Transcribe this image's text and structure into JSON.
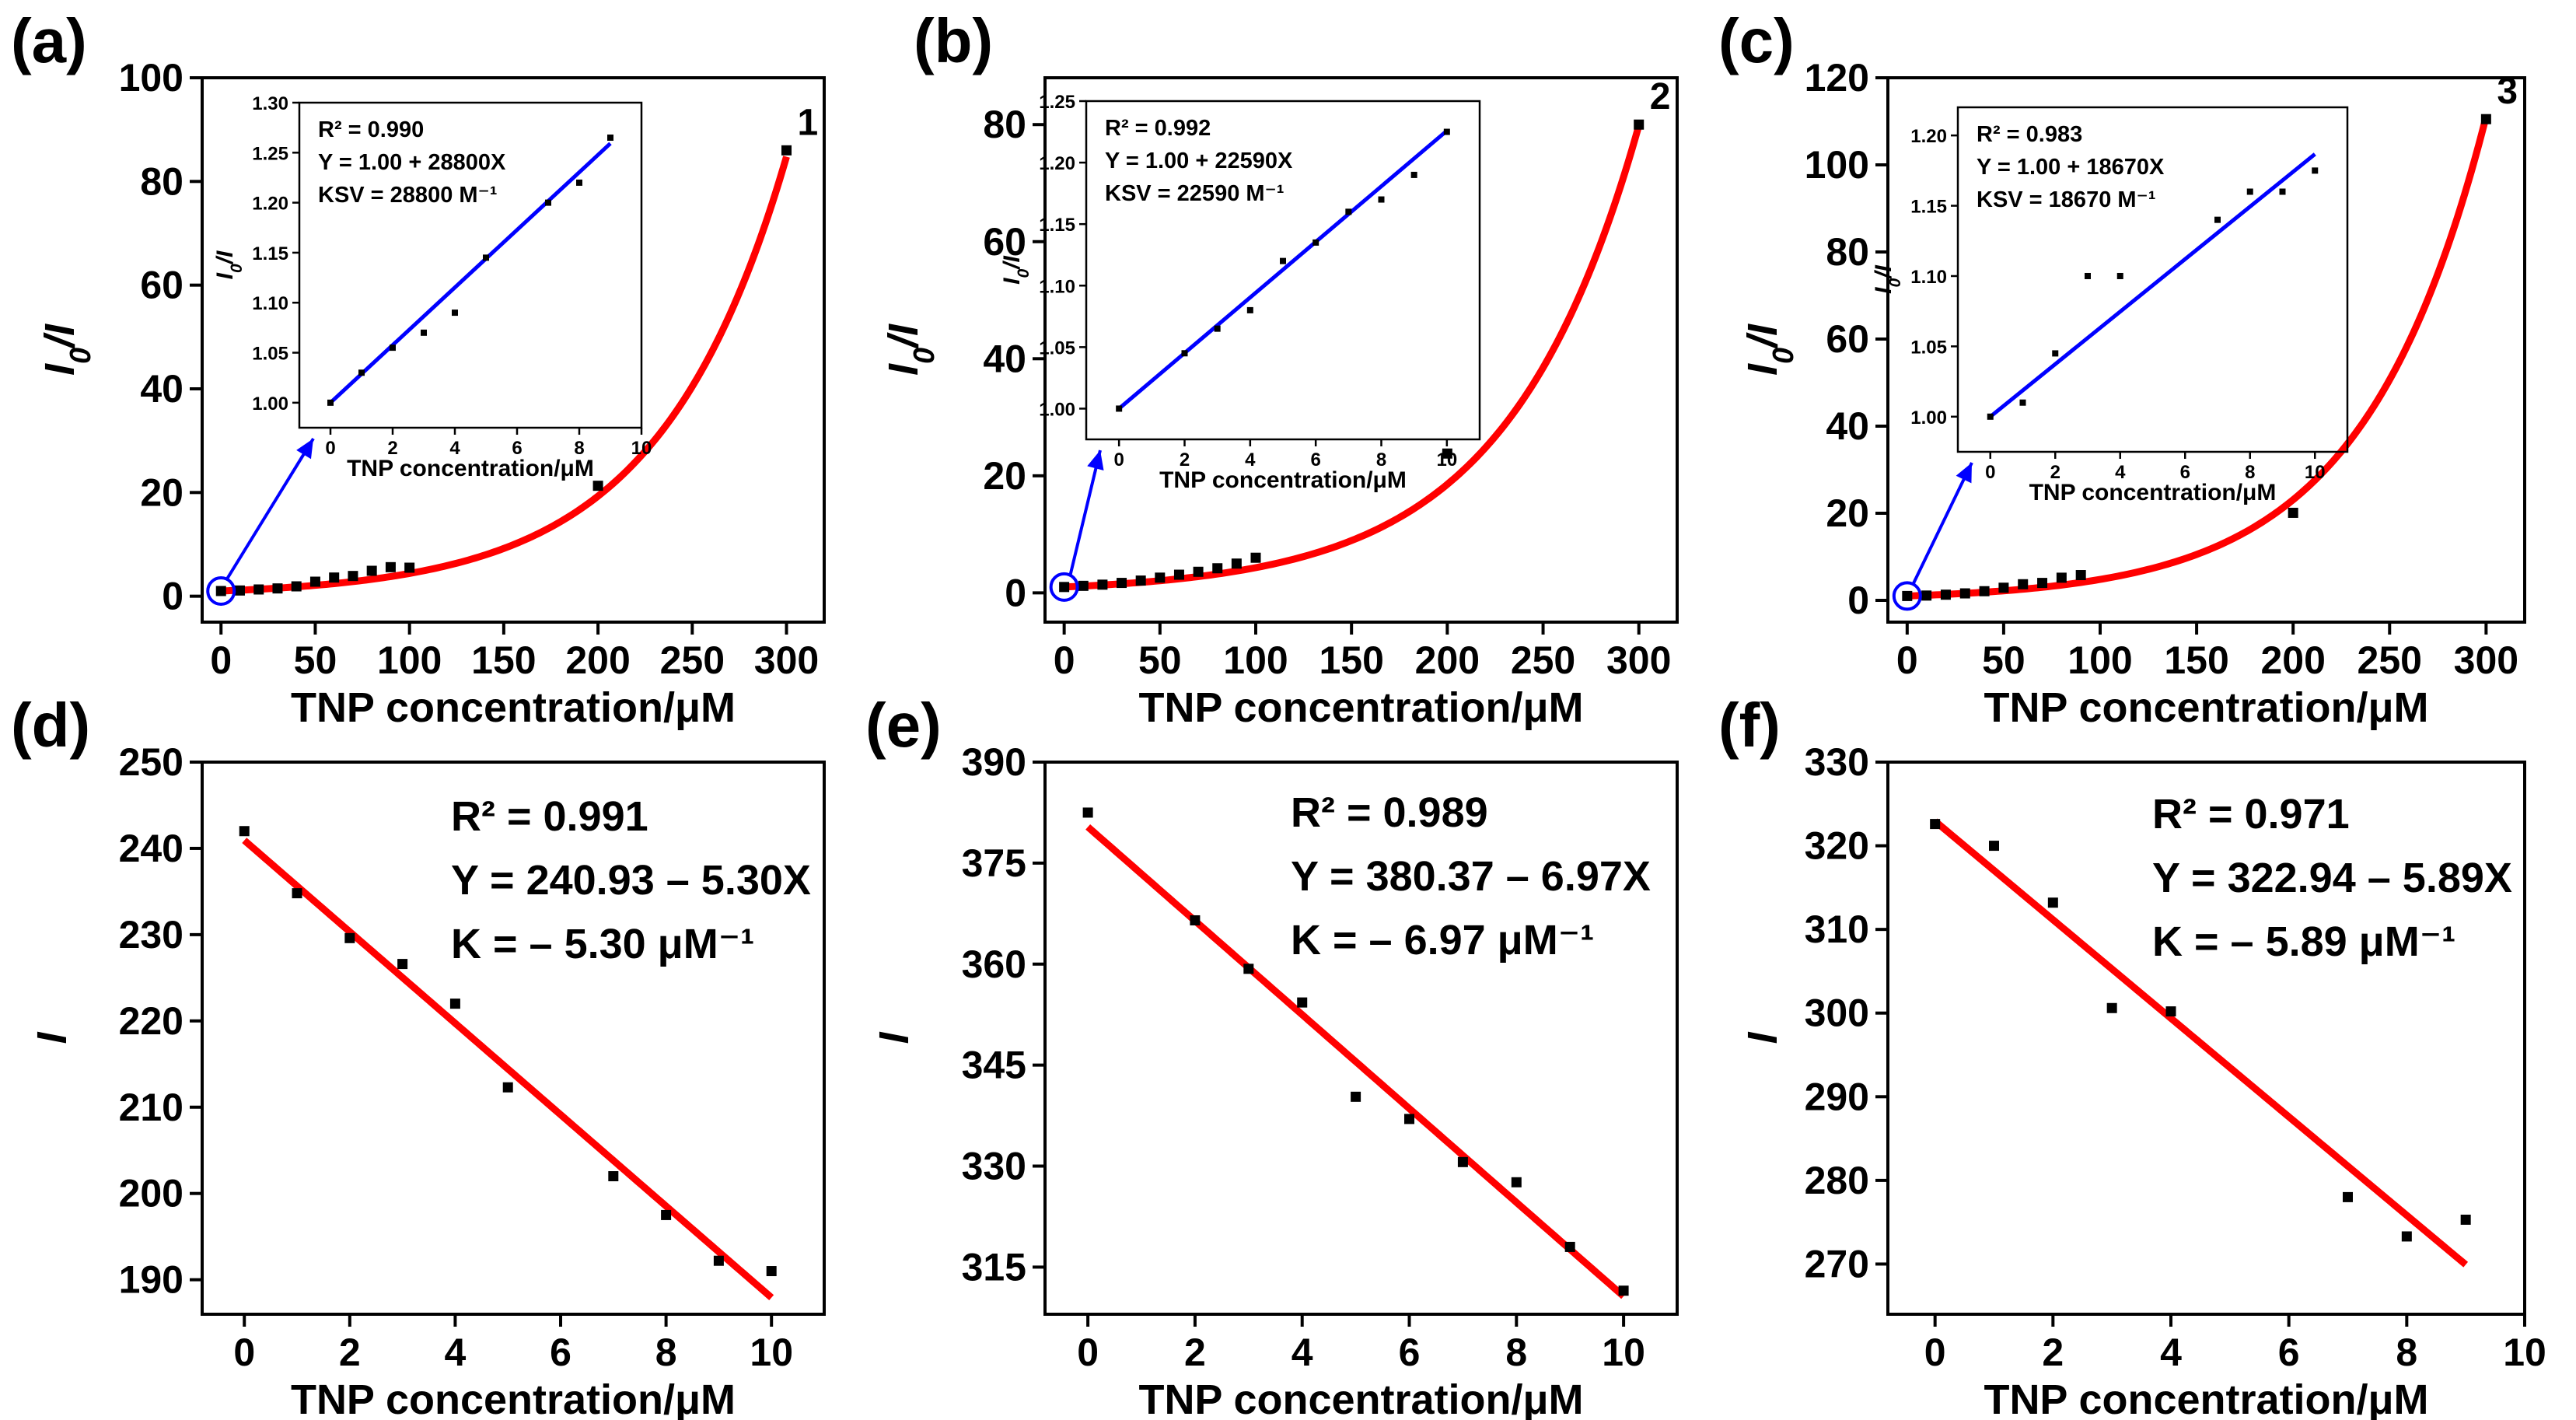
{
  "figure": {
    "panels": [
      {
        "label": "(a)",
        "chart_data": {
          "type": "scatter",
          "xlabel": "TNP concentration/μM",
          "ylabel": "I0/I",
          "xlim": [
            -10,
            320
          ],
          "ylim": [
            -5,
            100
          ],
          "xticks": [
            0,
            50,
            100,
            150,
            200,
            250,
            300
          ],
          "yticks": [
            0,
            20,
            40,
            60,
            80,
            100
          ],
          "colors": {
            "points": "#000000",
            "fit": "#ff0000",
            "inset_fit": "#0000ff",
            "arrow": "#0000ff"
          },
          "series": [
            {
              "name": "data",
              "points": [
                [
                  0,
                  1.0
                ],
                [
                  10,
                  1.1
                ],
                [
                  20,
                  1.3
                ],
                [
                  30,
                  1.5
                ],
                [
                  40,
                  1.9
                ],
                [
                  50,
                  2.8
                ],
                [
                  60,
                  3.6
                ],
                [
                  70,
                  3.9
                ],
                [
                  80,
                  4.9
                ],
                [
                  90,
                  5.6
                ],
                [
                  100,
                  5.5
                ],
                [
                  200,
                  21.3
                ],
                [
                  300,
                  86.0
                ]
              ]
            },
            {
              "name": "fit",
              "fit": {
                "kind": "exp",
                "params": [
                  1.0,
                  0.0148
                ]
              }
            }
          ],
          "curve_label": "1",
          "inset": {
            "xlabel": "TNP concentration/μM",
            "ylabel": "I0/I",
            "xlim": [
              -1,
              10
            ],
            "ylim": [
              0.975,
              1.3
            ],
            "xticks": [
              0,
              2,
              4,
              6,
              8,
              10
            ],
            "yticks": [
              1.0,
              1.05,
              1.1,
              1.15,
              1.2,
              1.25,
              1.3
            ],
            "ytick_labels": [
              "1.00",
              "1.05",
              "1.10",
              "1.15",
              "1.20",
              "1.25",
              "1.30"
            ],
            "points": [
              [
                0,
                1.0
              ],
              [
                1,
                1.03
              ],
              [
                2,
                1.055
              ],
              [
                3,
                1.07
              ],
              [
                4,
                1.09
              ],
              [
                5,
                1.145
              ],
              [
                7,
                1.2
              ],
              [
                8,
                1.22
              ],
              [
                9,
                1.265
              ]
            ],
            "fit": {
              "kind": "linear",
              "params": [
                1.0,
                0.0288
              ]
            },
            "fit_range": [
              0,
              9
            ],
            "annotations": [
              "R² = 0.990",
              "Y = 1.00 + 28800X",
              "KSV = 28800 M⁻¹"
            ]
          }
        }
      },
      {
        "label": "(b)",
        "chart_data": {
          "type": "scatter",
          "xlabel": "TNP concentration/μM",
          "ylabel": "I0/I",
          "xlim": [
            -10,
            320
          ],
          "ylim": [
            -5,
            88
          ],
          "xticks": [
            0,
            50,
            100,
            150,
            200,
            250,
            300
          ],
          "yticks": [
            0,
            20,
            40,
            60,
            80
          ],
          "colors": {
            "points": "#000000",
            "fit": "#ff0000",
            "inset_fit": "#0000ff",
            "arrow": "#0000ff"
          },
          "series": [
            {
              "name": "data",
              "points": [
                [
                  0,
                  1.0
                ],
                [
                  10,
                  1.2
                ],
                [
                  20,
                  1.4
                ],
                [
                  30,
                  1.7
                ],
                [
                  40,
                  2.1
                ],
                [
                  50,
                  2.6
                ],
                [
                  60,
                  3.1
                ],
                [
                  70,
                  3.6
                ],
                [
                  80,
                  4.2
                ],
                [
                  90,
                  5.0
                ],
                [
                  100,
                  6.0
                ],
                [
                  200,
                  23.8
                ],
                [
                  300,
                  80.0
                ]
              ]
            },
            {
              "name": "fit",
              "fit": {
                "kind": "exp",
                "params": [
                  1.0,
                  0.0146
                ]
              }
            }
          ],
          "curve_label": "2",
          "inset": {
            "xlabel": "TNP concentration/μM",
            "ylabel": "I0/I",
            "xlim": [
              -1,
              11
            ],
            "ylim": [
              0.975,
              1.25
            ],
            "xticks": [
              0,
              2,
              4,
              6,
              8,
              10
            ],
            "yticks": [
              1.0,
              1.05,
              1.1,
              1.15,
              1.2,
              1.25
            ],
            "ytick_labels": [
              "1.00",
              "1.05",
              "1.10",
              "1.15",
              "1.20",
              "1.25"
            ],
            "points": [
              [
                0,
                1.0
              ],
              [
                2,
                1.045
              ],
              [
                3,
                1.065
              ],
              [
                4,
                1.08
              ],
              [
                5,
                1.12
              ],
              [
                6,
                1.135
              ],
              [
                7,
                1.16
              ],
              [
                8,
                1.17
              ],
              [
                9,
                1.19
              ],
              [
                10,
                1.225
              ]
            ],
            "fit": {
              "kind": "linear",
              "params": [
                1.0,
                0.02259
              ]
            },
            "fit_range": [
              0,
              10
            ],
            "annotations": [
              "R² = 0.992",
              "Y = 1.00 + 22590X",
              "KSV = 22590 M⁻¹"
            ]
          }
        }
      },
      {
        "label": "(c)",
        "chart_data": {
          "type": "scatter",
          "xlabel": "TNP concentration/μM",
          "ylabel": "I0/I",
          "xlim": [
            -10,
            320
          ],
          "ylim": [
            -5,
            120
          ],
          "xticks": [
            0,
            50,
            100,
            150,
            200,
            250,
            300
          ],
          "yticks": [
            0,
            20,
            40,
            60,
            80,
            100,
            120
          ],
          "colors": {
            "points": "#000000",
            "fit": "#ff0000",
            "inset_fit": "#0000ff",
            "arrow": "#0000ff"
          },
          "series": [
            {
              "name": "data",
              "points": [
                [
                  0,
                  1.0
                ],
                [
                  10,
                  1.1
                ],
                [
                  20,
                  1.3
                ],
                [
                  30,
                  1.6
                ],
                [
                  40,
                  2.1
                ],
                [
                  50,
                  2.9
                ],
                [
                  60,
                  3.7
                ],
                [
                  70,
                  4.0
                ],
                [
                  80,
                  5.2
                ],
                [
                  90,
                  5.8
                ],
                [
                  200,
                  20.1
                ],
                [
                  300,
                  110.5
                ]
              ]
            },
            {
              "name": "fit",
              "fit": {
                "kind": "exp",
                "params": [
                  1.0,
                  0.0157
                ]
              }
            }
          ],
          "curve_label": "3",
          "inset": {
            "xlabel": "TNP concentration/μM",
            "ylabel": "I0/I",
            "xlim": [
              -1,
              11
            ],
            "ylim": [
              0.975,
              1.22
            ],
            "xticks": [
              0,
              2,
              4,
              6,
              8,
              10
            ],
            "yticks": [
              1.0,
              1.05,
              1.1,
              1.15,
              1.2
            ],
            "ytick_labels": [
              "1.00",
              "1.05",
              "1.10",
              "1.15",
              "1.20"
            ],
            "points": [
              [
                0,
                1.0
              ],
              [
                1,
                1.01
              ],
              [
                2,
                1.045
              ],
              [
                3,
                1.1
              ],
              [
                4,
                1.1
              ],
              [
                7,
                1.14
              ],
              [
                8,
                1.16
              ],
              [
                9,
                1.16
              ],
              [
                10,
                1.175
              ]
            ],
            "fit": {
              "kind": "linear",
              "params": [
                1.0,
                0.01867
              ]
            },
            "fit_range": [
              0,
              10
            ],
            "annotations": [
              "R² = 0.983",
              "Y = 1.00 + 18670X",
              "KSV = 18670 M⁻¹"
            ]
          }
        }
      },
      {
        "label": "(d)",
        "chart_data": {
          "type": "scatter",
          "xlabel": "TNP concentration/μM",
          "ylabel": "I",
          "xlim": [
            -0.8,
            11
          ],
          "ylim": [
            186,
            250
          ],
          "xticks": [
            0,
            2,
            4,
            6,
            8,
            10
          ],
          "yticks": [
            190,
            200,
            210,
            220,
            230,
            240,
            250
          ],
          "colors": {
            "points": "#000000",
            "fit": "#ff0000"
          },
          "series": [
            {
              "name": "data",
              "points": [
                [
                  0,
                  242
                ],
                [
                  1,
                  234.8
                ],
                [
                  2,
                  229.6
                ],
                [
                  3,
                  226.6
                ],
                [
                  4,
                  222
                ],
                [
                  5,
                  212.3
                ],
                [
                  7,
                  202
                ],
                [
                  8,
                  197.5
                ],
                [
                  9,
                  192.2
                ],
                [
                  10,
                  191
                ]
              ]
            },
            {
              "name": "fit",
              "fit": {
                "kind": "linear",
                "params": [
                  240.93,
                  -5.3
                ]
              }
            }
          ],
          "fit_range": [
            0,
            10
          ],
          "annotations": [
            "R² = 0.991",
            "Y = 240.93 – 5.30X",
            "K = – 5.30 μM⁻¹"
          ]
        }
      },
      {
        "label": "(e)",
        "chart_data": {
          "type": "scatter",
          "xlabel": "TNP concentration/μM",
          "ylabel": "I",
          "xlim": [
            -0.8,
            11
          ],
          "ylim": [
            308,
            390
          ],
          "xticks": [
            0,
            2,
            4,
            6,
            8,
            10
          ],
          "yticks": [
            315,
            330,
            345,
            360,
            375,
            390
          ],
          "colors": {
            "points": "#000000",
            "fit": "#ff0000"
          },
          "series": [
            {
              "name": "data",
              "points": [
                [
                  0,
                  382.5
                ],
                [
                  2,
                  366.5
                ],
                [
                  3,
                  359.3
                ],
                [
                  4,
                  354.3
                ],
                [
                  5,
                  340.3
                ],
                [
                  6,
                  337
                ],
                [
                  7,
                  330.6
                ],
                [
                  8,
                  327.6
                ],
                [
                  9,
                  318
                ],
                [
                  10,
                  311.5
                ]
              ]
            },
            {
              "name": "fit",
              "fit": {
                "kind": "linear",
                "params": [
                  380.37,
                  -6.97
                ]
              }
            }
          ],
          "fit_range": [
            0,
            10
          ],
          "annotations": [
            "R² = 0.989",
            "Y = 380.37 – 6.97X",
            "K = – 6.97 μM⁻¹"
          ]
        }
      },
      {
        "label": "(f)",
        "chart_data": {
          "type": "scatter",
          "xlabel": "TNP concentration/μM",
          "ylabel": "I",
          "xlim": [
            -0.8,
            10
          ],
          "ylim": [
            264,
            330
          ],
          "xticks": [
            0,
            2,
            4,
            6,
            8,
            10
          ],
          "yticks": [
            270,
            280,
            290,
            300,
            310,
            320,
            330
          ],
          "colors": {
            "points": "#000000",
            "fit": "#ff0000"
          },
          "series": [
            {
              "name": "data",
              "points": [
                [
                  0,
                  322.6
                ],
                [
                  1,
                  320
                ],
                [
                  2,
                  313.2
                ],
                [
                  3,
                  300.6
                ],
                [
                  4,
                  300.2
                ],
                [
                  7,
                  278
                ],
                [
                  8,
                  273.3
                ],
                [
                  9,
                  275.3
                ]
              ]
            },
            {
              "name": "fit",
              "fit": {
                "kind": "linear",
                "params": [
                  322.94,
                  -5.89
                ]
              }
            }
          ],
          "fit_range": [
            0,
            9
          ],
          "annotations": [
            "R² = 0.971",
            "Y = 322.94 – 5.89X",
            "K = – 5.89 μM⁻¹"
          ]
        }
      }
    ]
  }
}
